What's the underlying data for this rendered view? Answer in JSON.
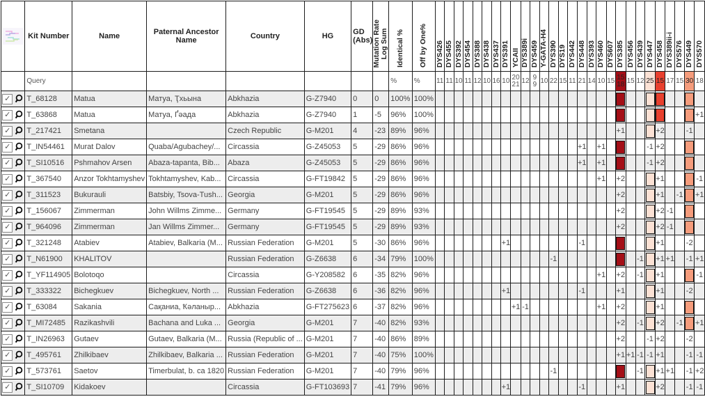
{
  "table": {
    "fixed_headers": {
      "kit": "Kit Number",
      "name": "Name",
      "ancestor": "Paternal Ancestor Name",
      "country": "Country",
      "hg": "HG",
      "gd_lines": [
        "GD",
        "(Abs)"
      ],
      "mutation_rate_lines": [
        "Mutation Rate",
        "Log Sum"
      ],
      "identical": "Identical %",
      "off_by_one": "Off by One%"
    },
    "marker_columns": [
      "DYS426",
      "DYS455",
      "DYS392",
      "DYS454",
      "DYS388",
      "DYS438",
      "DYS437",
      "DYS391",
      "YCAII",
      "DYS389i",
      "DYS459",
      "Y-GATA-H4",
      "DYS390",
      "DYS19",
      "DYS442",
      "DYS448",
      "DYS393",
      "DYS460",
      "DYS607",
      "DYS385",
      "DYS456",
      "DYS439",
      "DYS447",
      "DYS458",
      "DYS389ii-i",
      "DYS576",
      "DYS449",
      "DYS570"
    ],
    "query": {
      "kit": "Query",
      "identical": "%",
      "off_by_one": "%",
      "markers": [
        "11",
        "11",
        "10",
        "11",
        "12",
        "10",
        "16",
        "10",
        [
          "20",
          "21"
        ],
        "12",
        [
          "9",
          "9"
        ],
        "10",
        "22",
        "15",
        "11",
        "21",
        "14",
        "10",
        "15",
        [
          "15",
          "18"
        ],
        "15",
        "12",
        "25",
        "15",
        "17",
        "15",
        "30",
        "18"
      ]
    },
    "colors": {
      "marker_fills": {
        "DYS385": "#a40f17",
        "DYS447": "#fbe1d4",
        "DYS458": "#e8402e",
        "DYS449": "#f59c7c"
      },
      "row_stripe": "#ededed"
    },
    "icons": {
      "row_checkbox": "checked-checkbox",
      "row_magnifier": "magnifier-icon",
      "header_logo": "tree-icon",
      "check_glyph": "✓"
    },
    "rows": [
      {
        "kit": "T_68128",
        "name": "Matua",
        "ancestor": "Матуа, Ҭхьына",
        "country": "Abkhazia",
        "hg": "G-Z7940",
        "gd": "0",
        "mrls": "0",
        "identical": "100%",
        "off_by_one": "100%",
        "diffs": {},
        "fills": [
          "DYS385",
          "DYS447",
          "DYS458",
          "DYS449"
        ]
      },
      {
        "kit": "T_63868",
        "name": "Matua",
        "ancestor": "Матуа, Ґәада",
        "country": "Abkhazia",
        "hg": "G-Z7940",
        "gd": "1",
        "mrls": "-5",
        "identical": "96%",
        "off_by_one": "100%",
        "diffs": {
          "DYS570": "+1"
        },
        "fills": [
          "DYS385",
          "DYS447",
          "DYS458",
          "DYS449"
        ]
      },
      {
        "kit": "T_217421",
        "name": "Smetana",
        "ancestor": "",
        "country": "Czech Republic",
        "hg": "G-M201",
        "gd": "4",
        "mrls": "-23",
        "identical": "89%",
        "off_by_one": "96%",
        "diffs": {
          "DYS385": "+1",
          "DYS458": "+2",
          "DYS449": "-1"
        },
        "fills": [
          "DYS447"
        ]
      },
      {
        "kit": "T_IN54461",
        "name": "Murat Dalov",
        "ancestor": "Quaba/Agubachey/...",
        "country": "Circassia",
        "hg": "G-Z45053",
        "gd": "5",
        "mrls": "-29",
        "identical": "86%",
        "off_by_one": "96%",
        "diffs": {
          "DYS448": "+1",
          "DYS460": "+1",
          "DYS447": "-1",
          "DYS458": "+2"
        },
        "fills": [
          "DYS385",
          "DYS449"
        ]
      },
      {
        "kit": "T_SI10516",
        "name": "Pshmahov Arsen",
        "ancestor": "Abaza-tapanta, Bib...",
        "country": "Abaza",
        "hg": "G-Z45053",
        "gd": "5",
        "mrls": "-29",
        "identical": "86%",
        "off_by_one": "96%",
        "diffs": {
          "DYS448": "+1",
          "DYS460": "+1",
          "DYS447": "-1",
          "DYS458": "+2"
        },
        "fills": [
          "DYS385",
          "DYS449"
        ]
      },
      {
        "kit": "T_367540",
        "name": "Anzor Tokhtamyshev",
        "ancestor": "Tokhtamyshev, Kab...",
        "country": "Circassia",
        "hg": "G-FT19842",
        "gd": "5",
        "mrls": "-29",
        "identical": "86%",
        "off_by_one": "96%",
        "diffs": {
          "DYS460": "+1",
          "DYS385": "+2",
          "DYS458": "+1",
          "DYS570": "-1"
        },
        "fills": [
          "DYS447",
          "DYS449"
        ]
      },
      {
        "kit": "T_311523",
        "name": "Bukurauli",
        "ancestor": "Batsbiy, Tsova-Tush...",
        "country": "Georgia",
        "hg": "G-M201",
        "gd": "5",
        "mrls": "-29",
        "identical": "86%",
        "off_by_one": "96%",
        "diffs": {
          "DYS385": "+2",
          "DYS458": "+1",
          "DYS576": "-1",
          "DYS570": "+1"
        },
        "fills": [
          "DYS447",
          "DYS449"
        ]
      },
      {
        "kit": "T_156067",
        "name": "Zimmerman",
        "ancestor": "John Willms Zimme...",
        "country": "Germany",
        "hg": "G-FT19545",
        "gd": "5",
        "mrls": "-29",
        "identical": "89%",
        "off_by_one": "93%",
        "diffs": {
          "DYS385": "+2",
          "DYS458": "+2",
          "DYS389ii-i": "-1"
        },
        "fills": [
          "DYS447",
          "DYS449"
        ]
      },
      {
        "kit": "T_964096",
        "name": "Zimmerman",
        "ancestor": "Jan Willms Zimmer...",
        "country": "Germany",
        "hg": "G-FT19545",
        "gd": "5",
        "mrls": "-29",
        "identical": "89%",
        "off_by_one": "93%",
        "diffs": {
          "DYS385": "+2",
          "DYS458": "+2",
          "DYS389ii-i": "-1"
        },
        "fills": [
          "DYS447",
          "DYS449"
        ]
      },
      {
        "kit": "T_321248",
        "name": "Atabiev",
        "ancestor": "Atabiev, Balkaria (M...",
        "country": "Russian Federation",
        "hg": "G-M201",
        "gd": "5",
        "mrls": "-30",
        "identical": "86%",
        "off_by_one": "96%",
        "diffs": {
          "DYS391": "+1",
          "DYS448": "-1",
          "DYS458": "+1",
          "DYS449": "-2"
        },
        "fills": [
          "DYS385",
          "DYS447"
        ]
      },
      {
        "kit": "T_N61900",
        "name": "KHALITOV",
        "ancestor": "",
        "country": "Russian Federation",
        "hg": "G-Z6638",
        "gd": "6",
        "mrls": "-34",
        "identical": "79%",
        "off_by_one": "100%",
        "diffs": {
          "DYS390": "-1",
          "DYS439": "-1",
          "DYS458": "+1",
          "DYS389ii-i": "+1",
          "DYS449": "-1",
          "DYS570": "+1"
        },
        "fills": [
          "DYS385",
          "DYS447"
        ]
      },
      {
        "kit": "T_YF114905",
        "name": "Bolotoqo",
        "ancestor": "",
        "country": "Circassia",
        "hg": "G-Y208582",
        "gd": "6",
        "mrls": "-35",
        "identical": "82%",
        "off_by_one": "96%",
        "diffs": {
          "DYS460": "+1",
          "DYS385": "+2",
          "DYS439": "-1",
          "DYS458": "+1",
          "DYS570": "-1"
        },
        "fills": [
          "DYS447",
          "DYS449"
        ]
      },
      {
        "kit": "T_333322",
        "name": "Bichegkuev",
        "ancestor": "Bichegkuev, North ...",
        "country": "Russian Federation",
        "hg": "G-Z6638",
        "gd": "6",
        "mrls": "-36",
        "identical": "82%",
        "off_by_one": "96%",
        "diffs": {
          "DYS391": "+1",
          "DYS448": "-1",
          "DYS385": "+1",
          "DYS458": "+1",
          "DYS449": "-2"
        },
        "fills": [
          "DYS447"
        ]
      },
      {
        "kit": "T_63084",
        "name": "Sakania",
        "ancestor": "Сақаниа, Ҟәланыр...",
        "country": "Abkhazia",
        "hg": "G-FT275623",
        "gd": "6",
        "mrls": "-37",
        "identical": "82%",
        "off_by_one": "96%",
        "diffs": {
          "YCAII": "+1",
          "DYS389i": "-1",
          "DYS460": "+1",
          "DYS385": "+2",
          "DYS458": "+1"
        },
        "fills": [
          "DYS447",
          "DYS449"
        ]
      },
      {
        "kit": "T_MI72485",
        "name": "Razikashvili",
        "ancestor": "Bachana and Luka ...",
        "country": "Georgia",
        "hg": "G-M201",
        "gd": "7",
        "mrls": "-40",
        "identical": "82%",
        "off_by_one": "93%",
        "diffs": {
          "DYS385": "+2",
          "DYS439": "-1",
          "DYS458": "+2",
          "DYS576": "-1",
          "DYS570": "+1"
        },
        "fills": [
          "DYS447",
          "DYS449"
        ]
      },
      {
        "kit": "T_IN26963",
        "name": "Gutaev",
        "ancestor": "Gutaev, Balkaria (M...",
        "country": "Russia (Republic of ...",
        "hg": "G-M201",
        "gd": "7",
        "mrls": "-40",
        "identical": "86%",
        "off_by_one": "89%",
        "diffs": {
          "DYS385": "+2",
          "DYS447": "-1",
          "DYS458": "+2",
          "DYS449": "-2"
        },
        "fills": []
      },
      {
        "kit": "T_495761",
        "name": "Zhilkibaev",
        "ancestor": "Zhilkibaev, Balkaria ...",
        "country": "Russian Federation",
        "hg": "G-M201",
        "gd": "7",
        "mrls": "-40",
        "identical": "75%",
        "off_by_one": "100%",
        "diffs": {
          "DYS385": "+1",
          "DYS456": "+1",
          "DYS439": "-1",
          "DYS447": "-1",
          "DYS458": "+1",
          "DYS449": "-1",
          "DYS570": "-1"
        },
        "fills": []
      },
      {
        "kit": "T_573761",
        "name": "Saetov",
        "ancestor": "Timerbulat, b. ca 1820",
        "country": "Russian Federation",
        "hg": "G-M201",
        "gd": "7",
        "mrls": "-40",
        "identical": "79%",
        "off_by_one": "96%",
        "diffs": {
          "DYS390": "-1",
          "DYS439": "-1",
          "DYS458": "+1",
          "DYS389ii-i": "+1",
          "DYS449": "-1",
          "DYS570": "+2"
        },
        "fills": [
          "DYS385",
          "DYS447"
        ]
      },
      {
        "kit": "T_SI10709",
        "name": "Kidakoev",
        "ancestor": "",
        "country": "Circassia",
        "hg": "G-FT103693",
        "gd": "7",
        "mrls": "-41",
        "identical": "79%",
        "off_by_one": "96%",
        "diffs": {
          "DYS391": "+1",
          "DYS448": "-1",
          "DYS385": "+1",
          "DYS458": "+2",
          "DYS449": "-1",
          "DYS570": "-1"
        },
        "fills": [
          "DYS447"
        ]
      }
    ]
  }
}
